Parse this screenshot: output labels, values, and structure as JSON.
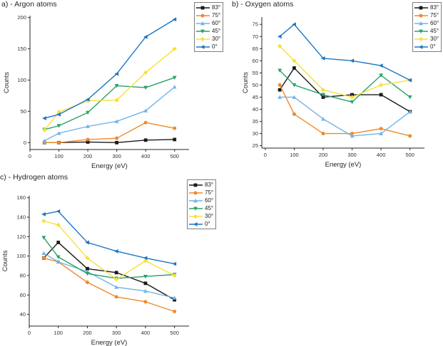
{
  "page": {
    "background": "#ffffff"
  },
  "axis": {
    "spine_color": "#262626",
    "tick_color": "#262626",
    "tick_label_color": "#333333",
    "label_color": "#262626"
  },
  "legend_labels": [
    "83°",
    "75°",
    "60°",
    "45°",
    "30°",
    "0°"
  ],
  "series_colors": {
    "deg83": "#1A1A1A",
    "deg75": "#EE8A2B",
    "deg60": "#74B4E7",
    "deg45": "#2AA266",
    "deg30": "#F6E13B",
    "deg0": "#1D76C2"
  },
  "chart_data": [
    {
      "id": "argon",
      "type": "line",
      "title": "a) - Argon atoms",
      "xlabel": "Energy (eV)",
      "ylabel": "Counts",
      "x": [
        50,
        100,
        200,
        300,
        400,
        500
      ],
      "xlim": [
        0,
        550
      ],
      "ylim": [
        -11,
        203
      ],
      "xticks": [
        0,
        100,
        200,
        300,
        400,
        500
      ],
      "yticks": [
        0,
        50,
        100,
        150,
        200
      ],
      "grid": false,
      "legend_position": "outside-top-right",
      "series": [
        {
          "name": "83°",
          "color": "#1A1A1A",
          "marker": "square",
          "values": [
            0,
            0,
            1,
            0,
            4,
            5
          ]
        },
        {
          "name": "75°",
          "color": "#EE8A2B",
          "marker": "circle",
          "values": [
            0,
            0,
            5,
            7,
            32,
            23
          ]
        },
        {
          "name": "60°",
          "color": "#74B4E7",
          "marker": "triangle-up",
          "values": [
            3,
            15,
            26,
            34,
            51,
            89
          ]
        },
        {
          "name": "45°",
          "color": "#2AA266",
          "marker": "triangle-down",
          "values": [
            21,
            27,
            48,
            91,
            88,
            104
          ]
        },
        {
          "name": "30°",
          "color": "#F6E13B",
          "marker": "diamond",
          "values": [
            20,
            49,
            67,
            68,
            112,
            150
          ]
        },
        {
          "name": "0°",
          "color": "#1D76C2",
          "marker": "triangle-left",
          "values": [
            39,
            45,
            69,
            110,
            169,
            197
          ]
        }
      ]
    },
    {
      "id": "oxygen",
      "type": "line",
      "title": "b) - Oxygen atoms",
      "xlabel": "Energy (eV)",
      "ylabel": "Counts",
      "x": [
        50,
        100,
        200,
        300,
        400,
        500
      ],
      "xlim": [
        -12,
        550
      ],
      "ylim": [
        24,
        78
      ],
      "xticks": [
        0,
        100,
        200,
        300,
        400,
        500
      ],
      "yticks": [
        25,
        30,
        35,
        40,
        45,
        50,
        55,
        60,
        65,
        70,
        75
      ],
      "grid": false,
      "legend_position": "outside-top-right",
      "series": [
        {
          "name": "83°",
          "color": "#1A1A1A",
          "marker": "square",
          "values": [
            48,
            57,
            45,
            46,
            46,
            39
          ]
        },
        {
          "name": "75°",
          "color": "#EE8A2B",
          "marker": "circle",
          "values": [
            50,
            38,
            30,
            30,
            32,
            29
          ]
        },
        {
          "name": "60°",
          "color": "#74B4E7",
          "marker": "triangle-up",
          "values": [
            45,
            45,
            36,
            29,
            30,
            39
          ]
        },
        {
          "name": "45°",
          "color": "#2AA266",
          "marker": "triangle-down",
          "values": [
            56,
            50,
            46,
            43,
            54,
            45
          ]
        },
        {
          "name": "30°",
          "color": "#F6E13B",
          "marker": "diamond",
          "values": [
            66,
            60,
            48,
            45,
            50,
            52
          ]
        },
        {
          "name": "0°",
          "color": "#1D76C2",
          "marker": "triangle-left",
          "values": [
            70,
            75,
            61,
            60,
            58,
            52
          ]
        }
      ]
    },
    {
      "id": "hydrogen",
      "type": "line",
      "title": "c) - Hydrogen atoms",
      "xlabel": "Energy (eV)",
      "ylabel": "Counts",
      "x": [
        50,
        100,
        200,
        300,
        400,
        500
      ],
      "xlim": [
        0,
        550
      ],
      "ylim": [
        28,
        162
      ],
      "xticks": [
        0,
        100,
        200,
        300,
        400,
        500
      ],
      "yticks": [
        40,
        60,
        80,
        100,
        120,
        140,
        160
      ],
      "grid": false,
      "legend_position": "outside-top-right",
      "series": [
        {
          "name": "83°",
          "color": "#1A1A1A",
          "marker": "square",
          "values": [
            98,
            114,
            87,
            83,
            72,
            55
          ]
        },
        {
          "name": "75°",
          "color": "#EE8A2B",
          "marker": "circle",
          "values": [
            98,
            94,
            73,
            58,
            53,
            43
          ]
        },
        {
          "name": "60°",
          "color": "#74B4E7",
          "marker": "triangle-up",
          "values": [
            103,
            94,
            84,
            68,
            64,
            57
          ]
        },
        {
          "name": "45°",
          "color": "#2AA266",
          "marker": "triangle-down",
          "values": [
            119,
            99,
            82,
            77,
            79,
            81
          ]
        },
        {
          "name": "30°",
          "color": "#F6E13B",
          "marker": "diamond",
          "values": [
            136,
            132,
            98,
            76,
            95,
            80
          ]
        },
        {
          "name": "0°",
          "color": "#1D76C2",
          "marker": "triangle-left",
          "values": [
            143,
            146,
            114,
            105,
            98,
            92
          ]
        }
      ]
    }
  ]
}
